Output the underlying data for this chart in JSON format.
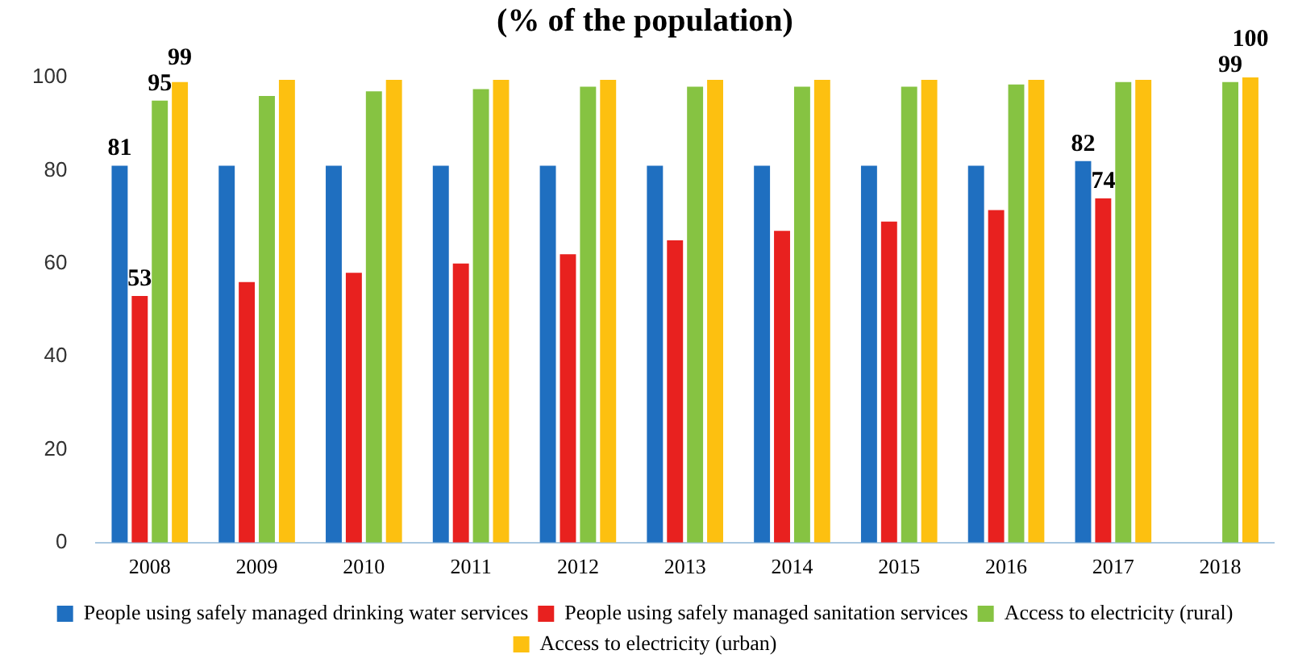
{
  "chart_data": {
    "type": "bar",
    "title": "(% of the population)",
    "categories": [
      "2008",
      "2009",
      "2010",
      "2011",
      "2012",
      "2013",
      "2014",
      "2015",
      "2016",
      "2017",
      "2018"
    ],
    "series": [
      {
        "name": "People using safely managed drinking water services",
        "color": "#1f6fc0",
        "values": [
          81,
          81,
          81,
          81,
          81,
          81,
          81,
          81,
          81,
          82,
          null
        ],
        "value_labels": [
          "81",
          null,
          null,
          null,
          null,
          null,
          null,
          null,
          null,
          "82",
          null
        ]
      },
      {
        "name": "People using safely managed sanitation services",
        "color": "#e8211f",
        "values": [
          53,
          56,
          58,
          60,
          62,
          65,
          67,
          69,
          71.5,
          74,
          null
        ],
        "value_labels": [
          "53",
          null,
          null,
          null,
          null,
          null,
          null,
          null,
          null,
          "74",
          null
        ]
      },
      {
        "name": "Access to electricity (rural)",
        "color": "#86c342",
        "values": [
          95,
          96,
          97,
          97.5,
          98,
          98,
          98,
          98,
          98.5,
          99,
          99
        ],
        "value_labels": [
          "95",
          null,
          null,
          null,
          null,
          null,
          null,
          null,
          null,
          null,
          "99"
        ]
      },
      {
        "name": "Access to electricity (urban)",
        "color": "#fdc010",
        "values": [
          99,
          99.5,
          99.5,
          99.5,
          99.5,
          99.5,
          99.5,
          99.5,
          99.5,
          99.5,
          100
        ],
        "value_labels": [
          "99",
          null,
          null,
          null,
          null,
          null,
          null,
          null,
          null,
          null,
          "100"
        ]
      }
    ],
    "ylim": [
      0,
      100
    ],
    "yticks": [
      0,
      20,
      40,
      60,
      80,
      100
    ],
    "grid": false,
    "legend": "bottom"
  }
}
